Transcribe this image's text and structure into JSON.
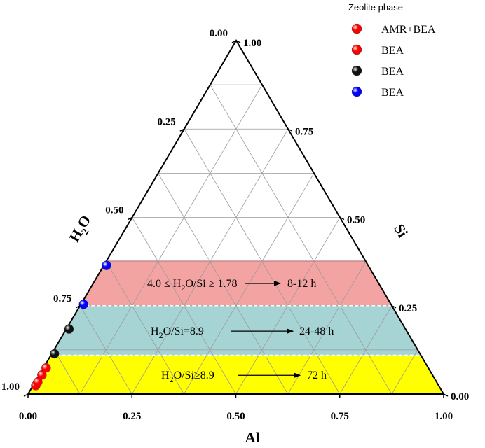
{
  "chart_data": {
    "type": "scatter",
    "subtype": "ternary",
    "axes": {
      "bottom": {
        "title": "Al",
        "ticks": [
          "0.00",
          "0.25",
          "0.50",
          "0.75",
          "1.00"
        ]
      },
      "left": {
        "title": "H2O",
        "title_main": "H",
        "title_sub": "2",
        "title_tail": "O",
        "ticks": [
          "0.00",
          "0.25",
          "0.50",
          "0.75",
          "1.00"
        ]
      },
      "right": {
        "title": "Si",
        "ticks": [
          "0.00",
          "0.25",
          "0.50",
          "0.75",
          "1.00"
        ]
      }
    },
    "grid": true,
    "grid_step": 0.125,
    "bands": [
      {
        "label_parts": [
          "4.0 ≤ H",
          "2",
          "O/Si ≥ 1.78",
          "8-12 h"
        ],
        "color": "#f4a3a3",
        "si_range": [
          0.25,
          0.38
        ]
      },
      {
        "label_parts": [
          "H",
          "2",
          "O/Si=8.9",
          "24-48 h"
        ],
        "color": "#a6d4d4",
        "si_range": [
          0.11,
          0.25
        ]
      },
      {
        "label_parts": [
          "H",
          "2",
          "O/Si≥8.9",
          "72 h"
        ],
        "color": "#ffff00",
        "si_range": [
          0.0,
          0.11
        ]
      }
    ],
    "legend": {
      "title": "Zeolite phase",
      "position": "top-right",
      "entries": [
        {
          "label": "AMR+BEA",
          "color": "#ff0000"
        },
        {
          "label": "BEA",
          "color": "#ff0000"
        },
        {
          "label": "BEA",
          "color": "#111111"
        },
        {
          "label": "BEA",
          "color": "#0000ff"
        }
      ]
    },
    "series": [
      {
        "color": "#ff0000",
        "points": [
          {
            "al": 0.0,
            "si": 0.02,
            "h2o": 0.98
          },
          {
            "al": 0.0,
            "si": 0.03,
            "h2o": 0.97
          },
          {
            "al": 0.0,
            "si": 0.05,
            "h2o": 0.95
          },
          {
            "al": 0.0,
            "si": 0.07,
            "h2o": 0.93
          }
        ]
      },
      {
        "color": "#111111",
        "points": [
          {
            "al": 0.0,
            "si": 0.11,
            "h2o": 0.89
          },
          {
            "al": 0.0,
            "si": 0.18,
            "h2o": 0.82
          }
        ]
      },
      {
        "color": "#0000ff",
        "points": [
          {
            "al": 0.0,
            "si": 0.25,
            "h2o": 0.75
          },
          {
            "al": 0.0,
            "si": 0.36,
            "h2o": 0.64
          }
        ]
      }
    ]
  }
}
